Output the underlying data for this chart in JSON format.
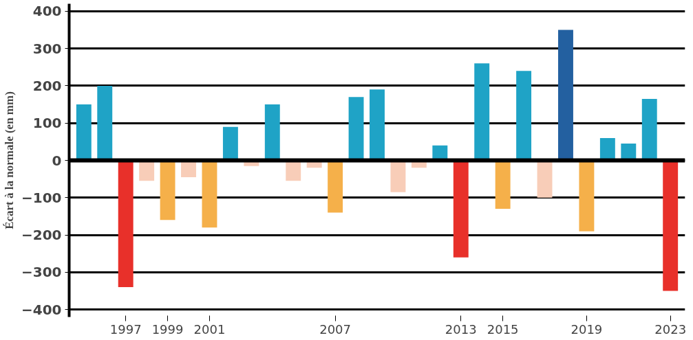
{
  "chart_data": {
    "type": "bar",
    "ylabel": "Écart à la normale (en mm)",
    "categories": [
      null,
      null,
      "1997",
      null,
      "1999",
      null,
      "2001",
      null,
      null,
      null,
      null,
      null,
      "2007",
      null,
      null,
      null,
      null,
      null,
      "2013",
      null,
      "2015",
      null,
      null,
      null,
      "2019",
      null,
      null,
      null,
      "2023"
    ],
    "values": [
      150,
      200,
      -340,
      -55,
      -160,
      -45,
      -180,
      90,
      -15,
      150,
      -55,
      -20,
      -140,
      170,
      190,
      -85,
      -20,
      40,
      -260,
      260,
      -130,
      240,
      -100,
      350,
      -190,
      60,
      45,
      165,
      -350
    ],
    "colors": [
      "#1fa3c6",
      "#1fa3c6",
      "#e8302a",
      "#f8cdb8",
      "#f5b04a",
      "#f8cdb8",
      "#f5b04a",
      "#1fa3c6",
      "#f8cdb8",
      "#1fa3c6",
      "#f8cdb8",
      "#f8cdb8",
      "#f5b04a",
      "#1fa3c6",
      "#1fa3c6",
      "#f8cdb8",
      "#f8cdb8",
      "#1fa3c6",
      "#e8302a",
      "#1fa3c6",
      "#f5b04a",
      "#1fa3c6",
      "#f8cdb8",
      "#2360a0",
      "#f5b04a",
      "#1fa3c6",
      "#1fa3c6",
      "#1fa3c6",
      "#e8302a"
    ],
    "ylim": [
      -420,
      420
    ],
    "yticks": [
      -400,
      -300,
      -200,
      -100,
      0,
      100,
      200,
      300,
      400
    ],
    "grid": "y"
  }
}
